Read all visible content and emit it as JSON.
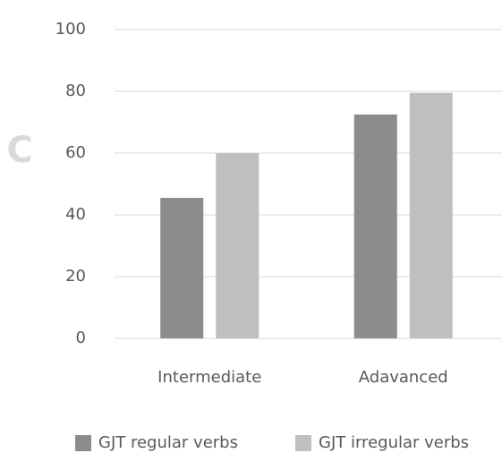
{
  "chart_data": {
    "type": "bar",
    "annotation": "C",
    "categories": [
      "Intermediate",
      "Adavanced"
    ],
    "series": [
      {
        "name": "GJT regular verbs",
        "color": "#8c8c8c",
        "values": [
          45.5,
          72.5
        ]
      },
      {
        "name": "GJT irregular verbs",
        "color": "#bfbfbf",
        "values": [
          60,
          79.5
        ]
      }
    ],
    "ylim": [
      0,
      100
    ],
    "yticks": [
      0,
      20,
      40,
      60,
      80,
      100
    ],
    "grid": true,
    "legend": "bottom"
  }
}
